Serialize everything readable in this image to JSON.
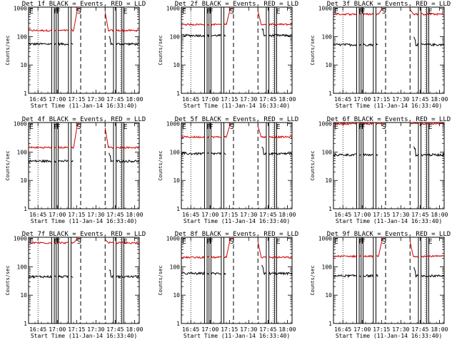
{
  "chart_data": {
    "type": "line",
    "layout": "3x3 grid",
    "y_axis": {
      "label": "Counts/sec",
      "scale": "log",
      "ylim": [
        1,
        1100
      ],
      "tick_labels": [
        "1",
        "10",
        "100",
        "1000"
      ]
    },
    "x_axis": {
      "label": "Start Time (11-Jan-14 16:33:40)",
      "xlim_minutes": [
        4,
        90
      ],
      "tick_minutes": [
        11.33,
        26.33,
        41.33,
        56.33,
        71.33,
        86.33
      ],
      "tick_labels": [
        "16:45",
        "17:00",
        "17:15",
        "17:30",
        "17:45",
        "18:00"
      ]
    },
    "legend": {
      "black": "Events",
      "red": "LLD"
    },
    "flag_markers": {
      "E_left_min": 4.5,
      "F1_min": 23.5,
      "F2_min": 25.5,
      "S_min": 41.5,
      "E_right_min": 77.5
    },
    "vertical_lines": {
      "dotted_min": [
        11.33,
        75.5
      ],
      "solid_min": [
        22.0,
        24.0,
        25.5,
        27.0,
        35.0,
        37.0,
        70.0,
        72.0,
        76.5,
        78.0
      ],
      "dashed_min": [
        44.5,
        63.5
      ]
    },
    "panels": [
      {
        "title": "Det 1f BLACK = Events, RED = LLD",
        "events_base": 55,
        "lld_base": 165,
        "lld_saturates": true
      },
      {
        "title": "Det 2f BLACK = Events, RED = LLD",
        "events_base": 110,
        "lld_base": 270,
        "lld_saturates": true
      },
      {
        "title": "Det 3f BLACK = Events, RED = LLD",
        "events_base": 52,
        "lld_base": 620,
        "lld_saturates": true
      },
      {
        "title": "Det 4f BLACK = Events, RED = LLD",
        "events_base": 48,
        "lld_base": 145,
        "lld_saturates": true
      },
      {
        "title": "Det 5f BLACK = Events, RED = LLD",
        "events_base": 88,
        "lld_base": 340,
        "lld_saturates": true
      },
      {
        "title": "Det 6f BLACK = Events, RED = LLD",
        "events_base": 80,
        "lld_base": 1000,
        "lld_saturates": true
      },
      {
        "title": "Det 7f BLACK = Events, RED = LLD",
        "events_base": 45,
        "lld_base": 700,
        "lld_saturates": true
      },
      {
        "title": "Det 8f BLACK = Events, RED = LLD",
        "events_base": 58,
        "lld_base": 215,
        "lld_saturates": true
      },
      {
        "title": "Det 9f BLACK = Events, RED = LLD",
        "events_base": 48,
        "lld_base": 235,
        "lld_saturates": true
      }
    ]
  },
  "colors": {
    "events": "#000000",
    "lld": "#d40000",
    "background": "#ffffff",
    "axes": "#000000"
  },
  "flag_letters": {
    "e": "E",
    "f": "F",
    "s": "S"
  }
}
